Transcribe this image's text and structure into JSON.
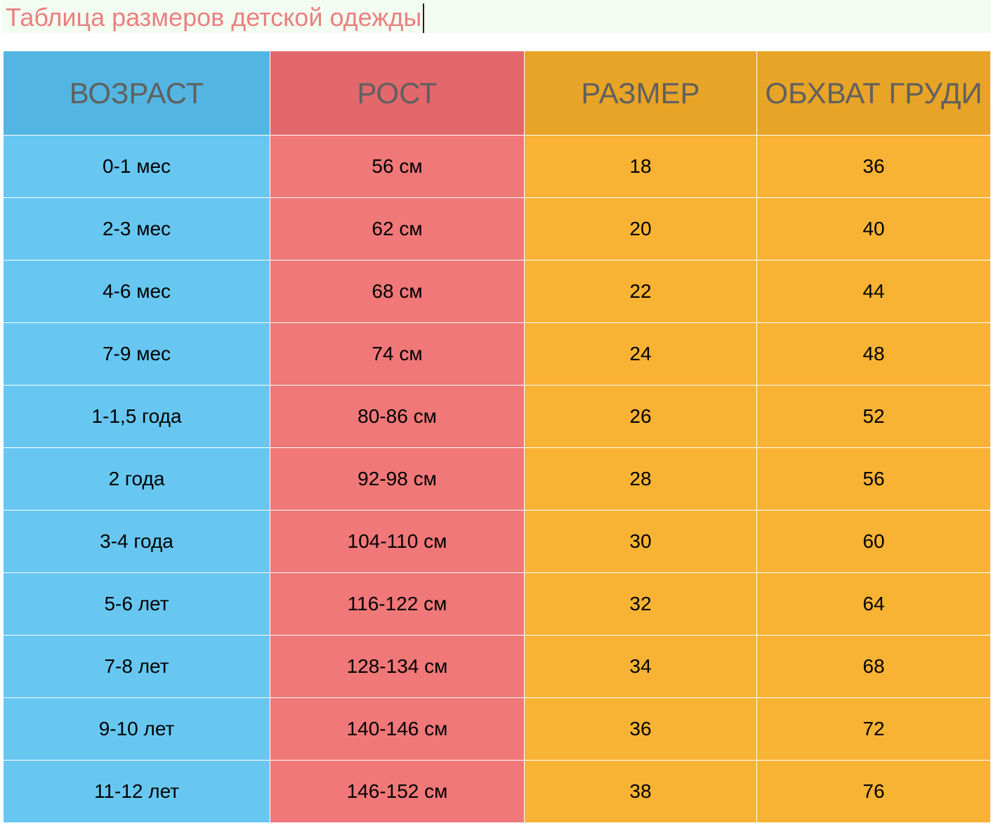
{
  "title": "Таблица размеров детской одежды",
  "table": {
    "headers": {
      "age": "ВОЗРАСТ",
      "height": "РОСТ",
      "size": "РАЗМЕР",
      "chest": "ОБХВАТ ГРУДИ"
    },
    "rows": [
      {
        "age": "0-1 мес",
        "height": "56 см",
        "size": "18",
        "chest": "36"
      },
      {
        "age": "2-3 мес",
        "height": "62 см",
        "size": "20",
        "chest": "40"
      },
      {
        "age": "4-6 мес",
        "height": "68 см",
        "size": "22",
        "chest": "44"
      },
      {
        "age": "7-9 мес",
        "height": "74 см",
        "size": "24",
        "chest": "48"
      },
      {
        "age": "1-1,5 года",
        "height": "80-86 см",
        "size": "26",
        "chest": "52"
      },
      {
        "age": "2 года",
        "height": "92-98 см",
        "size": "28",
        "chest": "56"
      },
      {
        "age": "3-4 года",
        "height": "104-110 см",
        "size": "30",
        "chest": "60"
      },
      {
        "age": "5-6 лет",
        "height": "116-122 см",
        "size": "32",
        "chest": "64"
      },
      {
        "age": "7-8 лет",
        "height": "128-134 см",
        "size": "34",
        "chest": "68"
      },
      {
        "age": "9-10 лет",
        "height": "140-146 см",
        "size": "36",
        "chest": "72"
      },
      {
        "age": "11-12 лет",
        "height": "146-152 см",
        "size": "38",
        "chest": "76"
      }
    ]
  },
  "colors": {
    "title_text": "#ea8080",
    "title_background": "#f3fcf1",
    "age_header": "#53b6e2",
    "age_cell": "#67c7f1",
    "height_header": "#e2686b",
    "height_cell": "#f07878",
    "size_header": "#e8a426",
    "size_cell": "#f8b334",
    "header_text": "#606060"
  }
}
